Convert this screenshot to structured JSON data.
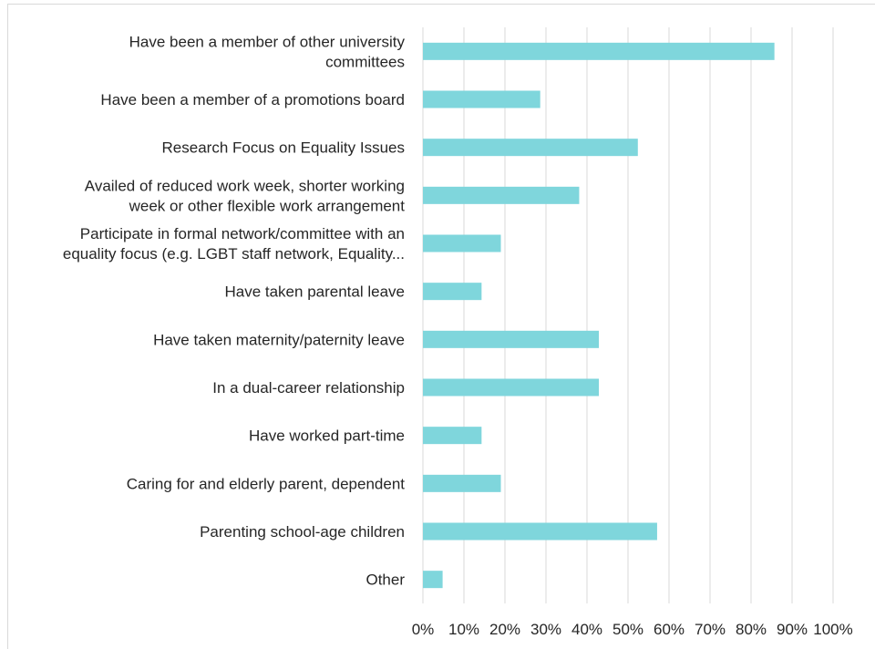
{
  "chart_data": {
    "type": "bar",
    "orientation": "horizontal",
    "title": "",
    "xlabel": "",
    "ylabel": "",
    "xlim": [
      0,
      100
    ],
    "grid": true,
    "bar_color": "#7fd6dc",
    "categories": [
      [
        "Have been a member of other university",
        "committees"
      ],
      [
        "Have been a member of a promotions board"
      ],
      [
        "Research Focus on Equality Issues"
      ],
      [
        "Availed of reduced work week, shorter working",
        "week or other flexible work arrangement"
      ],
      [
        "Participate in formal network/committee  with an",
        "equality focus (e.g. LGBT staff network, Equality..."
      ],
      [
        "Have taken parental leave"
      ],
      [
        "Have taken maternity/paternity leave"
      ],
      [
        "In a dual-career relationship"
      ],
      [
        "Have worked part-time"
      ],
      [
        "Caring for and elderly parent, dependent "
      ],
      [
        "Parenting school-age children"
      ],
      [
        "Other"
      ]
    ],
    "values": [
      85.7,
      28.6,
      52.4,
      38.1,
      19.0,
      14.3,
      42.9,
      42.9,
      14.3,
      19.0,
      57.1,
      4.8
    ],
    "x_ticks": [
      0,
      10,
      20,
      30,
      40,
      50,
      60,
      70,
      80,
      90,
      100
    ],
    "x_tick_labels": [
      "0%",
      "10%",
      "20%",
      "30%",
      "40%",
      "50%",
      "60%",
      "70%",
      "80%",
      "90%",
      "100%"
    ]
  }
}
